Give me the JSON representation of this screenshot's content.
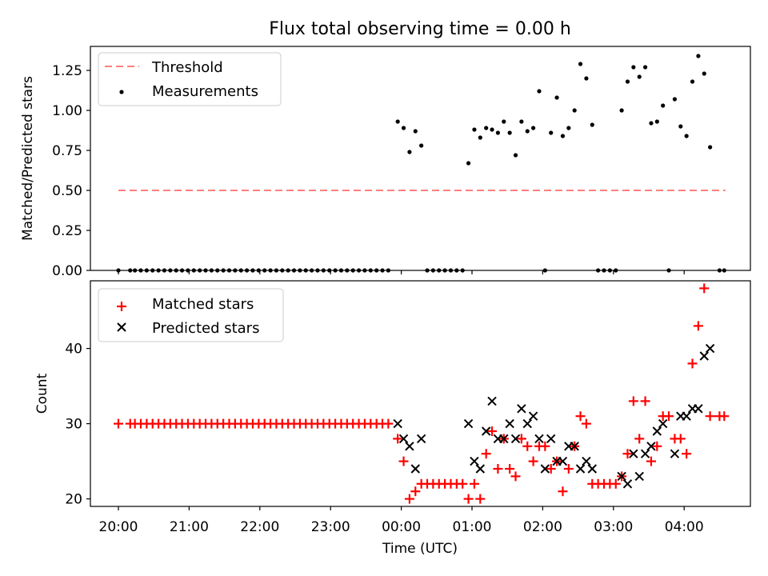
{
  "title": "Flux total observing time = 0.00 h",
  "colors": {
    "threshold": "#ff7f7f",
    "measurement": "#000000",
    "matched": "#ff0000",
    "predicted": "#000000"
  },
  "chart_data": [
    {
      "type": "scatter",
      "title": "Flux total observing time = 0.00 h",
      "ylabel": "Matched/Predicted stars",
      "xlabel": "",
      "ylim": [
        0,
        1.4
      ],
      "yticks": [
        "0.00",
        "0.25",
        "0.50",
        "0.75",
        "1.00",
        "1.25"
      ],
      "ytick_values": [
        0,
        0.25,
        0.5,
        0.75,
        1.0,
        1.25
      ],
      "legend": "top-left",
      "series": [
        {
          "name": "Threshold",
          "style": "dashed-line",
          "x": [
            "20:00",
            "04:35"
          ],
          "y": [
            0.5,
            0.5
          ]
        },
        {
          "name": "Measurements",
          "style": "dot",
          "points": [
            [
              "20:00",
              0
            ],
            [
              "20:10",
              0
            ],
            [
              "20:14",
              0
            ],
            [
              "20:19",
              0
            ],
            [
              "20:24",
              0
            ],
            [
              "20:29",
              0
            ],
            [
              "20:34",
              0
            ],
            [
              "20:39",
              0
            ],
            [
              "20:44",
              0
            ],
            [
              "20:49",
              0
            ],
            [
              "20:54",
              0
            ],
            [
              "20:59",
              0
            ],
            [
              "21:04",
              0
            ],
            [
              "21:09",
              0
            ],
            [
              "21:14",
              0
            ],
            [
              "21:19",
              0
            ],
            [
              "21:24",
              0
            ],
            [
              "21:29",
              0
            ],
            [
              "21:34",
              0
            ],
            [
              "21:39",
              0
            ],
            [
              "21:44",
              0
            ],
            [
              "21:49",
              0
            ],
            [
              "21:54",
              0
            ],
            [
              "21:59",
              0
            ],
            [
              "22:04",
              0
            ],
            [
              "22:09",
              0
            ],
            [
              "22:14",
              0
            ],
            [
              "22:19",
              0
            ],
            [
              "22:24",
              0
            ],
            [
              "22:29",
              0
            ],
            [
              "22:34",
              0
            ],
            [
              "22:39",
              0
            ],
            [
              "22:44",
              0
            ],
            [
              "22:49",
              0
            ],
            [
              "22:54",
              0
            ],
            [
              "22:59",
              0
            ],
            [
              "23:04",
              0
            ],
            [
              "23:09",
              0
            ],
            [
              "23:14",
              0
            ],
            [
              "23:19",
              0
            ],
            [
              "23:24",
              0
            ],
            [
              "23:29",
              0
            ],
            [
              "23:34",
              0
            ],
            [
              "23:39",
              0
            ],
            [
              "23:44",
              0
            ],
            [
              "23:49",
              0
            ],
            [
              "23:57",
              0.93
            ],
            [
              "00:02",
              0.89
            ],
            [
              "00:07",
              0.74
            ],
            [
              "00:12",
              0.87
            ],
            [
              "00:17",
              0.78
            ],
            [
              "00:22",
              0
            ],
            [
              "00:27",
              0
            ],
            [
              "00:32",
              0
            ],
            [
              "00:37",
              0
            ],
            [
              "00:42",
              0
            ],
            [
              "00:47",
              0
            ],
            [
              "00:52",
              0
            ],
            [
              "00:57",
              0.67
            ],
            [
              "01:02",
              0.88
            ],
            [
              "01:07",
              0.83
            ],
            [
              "01:12",
              0.89
            ],
            [
              "01:17",
              0.88
            ],
            [
              "01:22",
              0.86
            ],
            [
              "01:27",
              0.93
            ],
            [
              "01:32",
              0.86
            ],
            [
              "01:37",
              0.72
            ],
            [
              "01:42",
              0.93
            ],
            [
              "01:47",
              0.87
            ],
            [
              "01:52",
              0.89
            ],
            [
              "01:57",
              1.12
            ],
            [
              "02:02",
              0
            ],
            [
              "02:07",
              0.86
            ],
            [
              "02:12",
              1.08
            ],
            [
              "02:17",
              0.84
            ],
            [
              "02:22",
              0.89
            ],
            [
              "02:27",
              1.0
            ],
            [
              "02:32",
              1.29
            ],
            [
              "02:37",
              1.2
            ],
            [
              "02:42",
              0.91
            ],
            [
              "02:47",
              0
            ],
            [
              "02:52",
              0
            ],
            [
              "02:57",
              0
            ],
            [
              "03:02",
              0
            ],
            [
              "03:07",
              1.0
            ],
            [
              "03:12",
              1.18
            ],
            [
              "03:17",
              1.27
            ],
            [
              "03:22",
              1.21
            ],
            [
              "03:27",
              1.27
            ],
            [
              "03:32",
              0.92
            ],
            [
              "03:37",
              0.93
            ],
            [
              "03:42",
              1.03
            ],
            [
              "03:47",
              0
            ],
            [
              "03:52",
              1.07
            ],
            [
              "03:57",
              0.9
            ],
            [
              "04:02",
              0.84
            ],
            [
              "04:07",
              1.18
            ],
            [
              "04:12",
              1.34
            ],
            [
              "04:17",
              1.23
            ],
            [
              "04:22",
              0.77
            ],
            [
              "04:30",
              0
            ],
            [
              "04:34",
              0
            ]
          ]
        }
      ]
    },
    {
      "type": "scatter",
      "title": "",
      "ylabel": "Count",
      "xlabel": "Time (UTC)",
      "ylim": [
        19,
        49
      ],
      "yticks": [
        "20",
        "30",
        "40"
      ],
      "ytick_values": [
        20,
        30,
        40
      ],
      "xticks": [
        "20:00",
        "21:00",
        "22:00",
        "23:00",
        "00:00",
        "01:00",
        "02:00",
        "03:00",
        "04:00"
      ],
      "legend": "top-left",
      "series": [
        {
          "name": "Matched stars",
          "style": "plus",
          "points": [
            [
              "20:00",
              30
            ],
            [
              "20:10",
              30
            ],
            [
              "20:14",
              30
            ],
            [
              "20:19",
              30
            ],
            [
              "20:24",
              30
            ],
            [
              "20:29",
              30
            ],
            [
              "20:34",
              30
            ],
            [
              "20:39",
              30
            ],
            [
              "20:44",
              30
            ],
            [
              "20:49",
              30
            ],
            [
              "20:54",
              30
            ],
            [
              "20:59",
              30
            ],
            [
              "21:04",
              30
            ],
            [
              "21:09",
              30
            ],
            [
              "21:14",
              30
            ],
            [
              "21:19",
              30
            ],
            [
              "21:24",
              30
            ],
            [
              "21:29",
              30
            ],
            [
              "21:34",
              30
            ],
            [
              "21:39",
              30
            ],
            [
              "21:44",
              30
            ],
            [
              "21:49",
              30
            ],
            [
              "21:54",
              30
            ],
            [
              "21:59",
              30
            ],
            [
              "22:04",
              30
            ],
            [
              "22:09",
              30
            ],
            [
              "22:14",
              30
            ],
            [
              "22:19",
              30
            ],
            [
              "22:24",
              30
            ],
            [
              "22:29",
              30
            ],
            [
              "22:34",
              30
            ],
            [
              "22:39",
              30
            ],
            [
              "22:44",
              30
            ],
            [
              "22:49",
              30
            ],
            [
              "22:54",
              30
            ],
            [
              "22:59",
              30
            ],
            [
              "23:04",
              30
            ],
            [
              "23:09",
              30
            ],
            [
              "23:14",
              30
            ],
            [
              "23:19",
              30
            ],
            [
              "23:24",
              30
            ],
            [
              "23:29",
              30
            ],
            [
              "23:34",
              30
            ],
            [
              "23:39",
              30
            ],
            [
              "23:44",
              30
            ],
            [
              "23:49",
              30
            ],
            [
              "23:57",
              28
            ],
            [
              "00:02",
              25
            ],
            [
              "00:07",
              20
            ],
            [
              "00:12",
              21
            ],
            [
              "00:17",
              22
            ],
            [
              "00:22",
              22
            ],
            [
              "00:27",
              22
            ],
            [
              "00:32",
              22
            ],
            [
              "00:37",
              22
            ],
            [
              "00:42",
              22
            ],
            [
              "00:47",
              22
            ],
            [
              "00:52",
              22
            ],
            [
              "00:57",
              20
            ],
            [
              "01:02",
              22
            ],
            [
              "01:07",
              20
            ],
            [
              "01:12",
              26
            ],
            [
              "01:17",
              29
            ],
            [
              "01:22",
              24
            ],
            [
              "01:27",
              28
            ],
            [
              "01:32",
              24
            ],
            [
              "01:37",
              23
            ],
            [
              "01:42",
              28
            ],
            [
              "01:47",
              27
            ],
            [
              "01:52",
              25
            ],
            [
              "01:57",
              27
            ],
            [
              "02:02",
              27
            ],
            [
              "02:07",
              24
            ],
            [
              "02:12",
              25
            ],
            [
              "02:17",
              21
            ],
            [
              "02:22",
              24
            ],
            [
              "02:27",
              27
            ],
            [
              "02:32",
              31
            ],
            [
              "02:37",
              30
            ],
            [
              "02:42",
              22
            ],
            [
              "02:47",
              22
            ],
            [
              "02:52",
              22
            ],
            [
              "02:57",
              22
            ],
            [
              "03:02",
              22
            ],
            [
              "03:07",
              23
            ],
            [
              "03:12",
              26
            ],
            [
              "03:17",
              33
            ],
            [
              "03:22",
              28
            ],
            [
              "03:27",
              33
            ],
            [
              "03:32",
              25
            ],
            [
              "03:37",
              27
            ],
            [
              "03:42",
              31
            ],
            [
              "03:47",
              31
            ],
            [
              "03:52",
              28
            ],
            [
              "03:57",
              28
            ],
            [
              "04:02",
              26
            ],
            [
              "04:07",
              38
            ],
            [
              "04:12",
              43
            ],
            [
              "04:17",
              48
            ],
            [
              "04:22",
              31
            ],
            [
              "04:30",
              31
            ],
            [
              "04:34",
              31
            ]
          ]
        },
        {
          "name": "Predicted stars",
          "style": "x",
          "points": [
            [
              "23:57",
              30
            ],
            [
              "00:02",
              28
            ],
            [
              "00:07",
              27
            ],
            [
              "00:12",
              24
            ],
            [
              "00:17",
              28
            ],
            [
              "00:57",
              30
            ],
            [
              "01:02",
              25
            ],
            [
              "01:07",
              24
            ],
            [
              "01:12",
              29
            ],
            [
              "01:17",
              33
            ],
            [
              "01:22",
              28
            ],
            [
              "01:27",
              28
            ],
            [
              "01:32",
              30
            ],
            [
              "01:37",
              28
            ],
            [
              "01:42",
              32
            ],
            [
              "01:47",
              30
            ],
            [
              "01:52",
              31
            ],
            [
              "01:57",
              28
            ],
            [
              "02:02",
              24
            ],
            [
              "02:07",
              28
            ],
            [
              "02:12",
              25
            ],
            [
              "02:17",
              25
            ],
            [
              "02:22",
              27
            ],
            [
              "02:27",
              27
            ],
            [
              "02:32",
              24
            ],
            [
              "02:37",
              25
            ],
            [
              "02:42",
              24
            ],
            [
              "03:07",
              23
            ],
            [
              "03:12",
              22
            ],
            [
              "03:17",
              26
            ],
            [
              "03:22",
              23
            ],
            [
              "03:27",
              26
            ],
            [
              "03:32",
              27
            ],
            [
              "03:37",
              29
            ],
            [
              "03:42",
              30
            ],
            [
              "03:52",
              26
            ],
            [
              "03:57",
              31
            ],
            [
              "04:02",
              31
            ],
            [
              "04:07",
              32
            ],
            [
              "04:12",
              32
            ],
            [
              "04:17",
              39
            ],
            [
              "04:22",
              40
            ]
          ]
        }
      ]
    }
  ]
}
